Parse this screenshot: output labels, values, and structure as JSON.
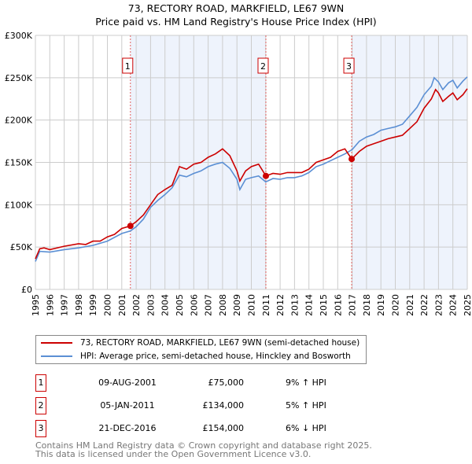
{
  "chart_data": {
    "type": "line",
    "title": "73, RECTORY ROAD, MARKFIELD, LE67 9WN",
    "subtitle": "Price paid vs. HM Land Registry's House Price Index (HPI)",
    "xlim": [
      1995,
      2025
    ],
    "ylim": [
      0,
      300000
    ],
    "x_ticks": [
      "1995",
      "1996",
      "1997",
      "1998",
      "1999",
      "2000",
      "2001",
      "2002",
      "2003",
      "2004",
      "2005",
      "2006",
      "2007",
      "2008",
      "2009",
      "2010",
      "2011",
      "2012",
      "2013",
      "2014",
      "2015",
      "2016",
      "2017",
      "2018",
      "2019",
      "2020",
      "2021",
      "2022",
      "2023",
      "2024",
      "2025"
    ],
    "y_ticks": [
      {
        "v": 0,
        "label": "£0"
      },
      {
        "v": 50000,
        "label": "£50K"
      },
      {
        "v": 100000,
        "label": "£100K"
      },
      {
        "v": 150000,
        "label": "£150K"
      },
      {
        "v": 200000,
        "label": "£200K"
      },
      {
        "v": 250000,
        "label": "£250K"
      },
      {
        "v": 300000,
        "label": "£300K"
      }
    ],
    "grid": true,
    "series": [
      {
        "name": "73, RECTORY ROAD, MARKFIELD, LE67 9WN (semi-detached house)",
        "color": "#cc0000",
        "x": [
          1995,
          1995.3,
          1995.6,
          1996,
          1997,
          1998,
          1998.5,
          1999,
          1999.5,
          2000,
          2000.5,
          2001,
          2001.6,
          2002,
          2002.5,
          2003,
          2003.5,
          2004,
          2004.5,
          2005,
          2005.5,
          2006,
          2006.5,
          2007,
          2007.5,
          2008,
          2008.5,
          2009,
          2009.2,
          2009.6,
          2010,
          2010.5,
          2011.01,
          2011.5,
          2012,
          2012.5,
          2013,
          2013.5,
          2014,
          2014.5,
          2015,
          2015.5,
          2016,
          2016.5,
          2016.97,
          2017.5,
          2018,
          2018.5,
          2019,
          2019.5,
          2020,
          2020.5,
          2021,
          2021.5,
          2022,
          2022.5,
          2022.8,
          2023,
          2023.3,
          2023.7,
          2024,
          2024.3,
          2024.7,
          2025
        ],
        "y": [
          36000,
          48000,
          49000,
          47000,
          51000,
          54000,
          53000,
          57000,
          57000,
          62000,
          65000,
          72000,
          75000,
          80000,
          88000,
          100000,
          112000,
          118000,
          123000,
          145000,
          142000,
          148000,
          150000,
          156000,
          160000,
          166000,
          158000,
          140000,
          128000,
          140000,
          145000,
          148000,
          134000,
          137000,
          136000,
          138000,
          138000,
          138000,
          142000,
          150000,
          153000,
          156000,
          163000,
          166000,
          154000,
          163000,
          169000,
          172000,
          175000,
          178000,
          180000,
          182000,
          190000,
          198000,
          214000,
          225000,
          236000,
          232000,
          222000,
          228000,
          232000,
          224000,
          230000,
          237000
        ]
      },
      {
        "name": "HPI: Average price, semi-detached house, Hinckley and Bosworth",
        "color": "#5b8fd4",
        "x": [
          1995,
          1995.3,
          1996,
          1997,
          1998,
          1999,
          2000,
          2001,
          2001.6,
          2002,
          2002.5,
          2003,
          2003.5,
          2004,
          2004.5,
          2005,
          2005.5,
          2006,
          2006.5,
          2007,
          2007.5,
          2008,
          2008.5,
          2009,
          2009.2,
          2009.6,
          2010,
          2010.5,
          2011,
          2011.5,
          2012,
          2012.5,
          2013,
          2013.5,
          2014,
          2014.5,
          2015,
          2015.5,
          2016,
          2016.5,
          2017,
          2017.5,
          2018,
          2018.5,
          2019,
          2019.5,
          2020,
          2020.5,
          2021,
          2021.5,
          2022,
          2022.5,
          2022.7,
          2023,
          2023.3,
          2023.7,
          2024,
          2024.3,
          2024.7,
          2025
        ],
        "y": [
          33000,
          45000,
          44000,
          47000,
          49000,
          52000,
          57000,
          66000,
          69000,
          74000,
          83000,
          97000,
          105000,
          112000,
          120000,
          135000,
          133000,
          137000,
          140000,
          145000,
          148000,
          150000,
          143000,
          130000,
          118000,
          130000,
          132000,
          134000,
          127000,
          131000,
          130000,
          132000,
          132000,
          134000,
          138000,
          145000,
          148000,
          152000,
          156000,
          160000,
          165000,
          175000,
          180000,
          183000,
          188000,
          190000,
          192000,
          195000,
          205000,
          215000,
          230000,
          240000,
          250000,
          245000,
          236000,
          244000,
          247000,
          238000,
          246000,
          251000
        ]
      }
    ],
    "sales": [
      {
        "label": "1",
        "x": 2001.6,
        "price": 75000
      },
      {
        "label": "2",
        "x": 2011.01,
        "price": 134000
      },
      {
        "label": "3",
        "x": 2016.97,
        "price": 154000
      }
    ],
    "legend_placement": "below"
  },
  "transactions": [
    {
      "num": "1",
      "date": "09-AUG-2001",
      "price": "£75,000",
      "hpi": "9% ↑ HPI"
    },
    {
      "num": "2",
      "date": "05-JAN-2011",
      "price": "£134,000",
      "hpi": "5% ↑ HPI"
    },
    {
      "num": "3",
      "date": "21-DEC-2016",
      "price": "£154,000",
      "hpi": "6% ↓ HPI"
    }
  ],
  "footer": {
    "line1": "Contains HM Land Registry data © Crown copyright and database right 2025.",
    "line2": "This data is licensed under the Open Government Licence v3.0."
  }
}
